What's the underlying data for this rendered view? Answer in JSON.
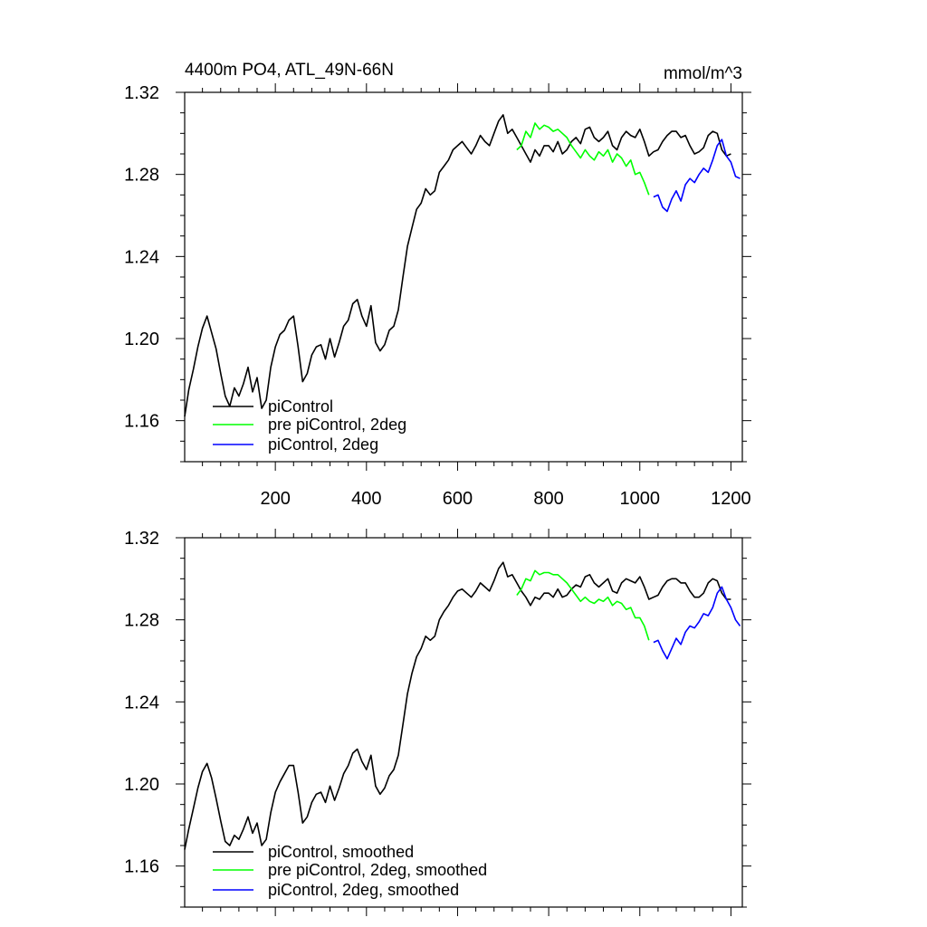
{
  "header": {
    "title": "4400m PO4, ATL_49N-66N",
    "units": "mmol/m^3"
  },
  "colors": {
    "piControl": "#000000",
    "pre_piControl_2deg": "#00ff00",
    "piControl_2deg": "#0000ff"
  },
  "chart_data": [
    {
      "type": "line",
      "title": "4400m PO4, ATL_49N-66N",
      "units_label": "mmol/m^3",
      "xlabel": "",
      "ylabel": "",
      "xlim": [
        1,
        1225
      ],
      "ylim": [
        1.14,
        1.32
      ],
      "xticks": [
        200,
        400,
        600,
        800,
        1000,
        1200
      ],
      "xtick_labels": [
        "200",
        "400",
        "600",
        "800",
        "1000",
        "1200"
      ],
      "yticks": [
        1.16,
        1.2,
        1.24,
        1.28,
        1.32
      ],
      "ytick_labels": [
        "1.16",
        "1.20",
        "1.24",
        "1.28",
        "1.32"
      ],
      "grid": false,
      "legend_position": "bottom-left",
      "series": [
        {
          "name": "piControl",
          "color": "#000000",
          "x": [
            1,
            10,
            20,
            30,
            40,
            50,
            60,
            70,
            80,
            90,
            100,
            110,
            120,
            130,
            140,
            150,
            160,
            170,
            180,
            190,
            200,
            210,
            220,
            230,
            240,
            250,
            260,
            270,
            280,
            290,
            300,
            310,
            320,
            330,
            340,
            350,
            360,
            370,
            380,
            390,
            400,
            410,
            420,
            430,
            440,
            450,
            460,
            470,
            480,
            490,
            500,
            510,
            520,
            530,
            540,
            550,
            560,
            570,
            580,
            590,
            600,
            610,
            620,
            630,
            640,
            650,
            660,
            670,
            680,
            690,
            700,
            710,
            720,
            730,
            740,
            750,
            760,
            770,
            780,
            790,
            800,
            810,
            820,
            830,
            840,
            850,
            860,
            870,
            880,
            890,
            900,
            910,
            920,
            930,
            940,
            950,
            960,
            970,
            980,
            990,
            1000,
            1010,
            1020,
            1030,
            1040,
            1050,
            1060,
            1070,
            1080,
            1090,
            1100,
            1110,
            1120,
            1130,
            1140,
            1150,
            1160,
            1170,
            1180,
            1190,
            1200
          ],
          "y": [
            1.162,
            1.175,
            1.185,
            1.196,
            1.205,
            1.211,
            1.203,
            1.195,
            1.183,
            1.172,
            1.167,
            1.176,
            1.172,
            1.178,
            1.186,
            1.174,
            1.181,
            1.166,
            1.17,
            1.186,
            1.196,
            1.202,
            1.204,
            1.209,
            1.211,
            1.196,
            1.179,
            1.183,
            1.192,
            1.196,
            1.197,
            1.19,
            1.2,
            1.191,
            1.198,
            1.206,
            1.209,
            1.217,
            1.219,
            1.211,
            1.206,
            1.216,
            1.198,
            1.194,
            1.197,
            1.204,
            1.206,
            1.214,
            1.23,
            1.245,
            1.254,
            1.263,
            1.266,
            1.273,
            1.27,
            1.272,
            1.281,
            1.284,
            1.287,
            1.292,
            1.294,
            1.296,
            1.293,
            1.29,
            1.294,
            1.299,
            1.296,
            1.294,
            1.3,
            1.306,
            1.309,
            1.3,
            1.302,
            1.298,
            1.294,
            1.29,
            1.286,
            1.292,
            1.289,
            1.294,
            1.294,
            1.291,
            1.296,
            1.29,
            1.292,
            1.296,
            1.298,
            1.295,
            1.302,
            1.303,
            1.298,
            1.296,
            1.298,
            1.301,
            1.294,
            1.292,
            1.298,
            1.301,
            1.299,
            1.298,
            1.302,
            1.296,
            1.289,
            1.291,
            1.292,
            1.296,
            1.299,
            1.301,
            1.301,
            1.298,
            1.299,
            1.294,
            1.29,
            1.291,
            1.293,
            1.299,
            1.301,
            1.3,
            1.292,
            1.289,
            1.29
          ]
        },
        {
          "name": "pre piControl, 2deg",
          "color": "#00ff00",
          "x": [
            730,
            740,
            750,
            760,
            770,
            780,
            790,
            800,
            810,
            820,
            830,
            840,
            850,
            860,
            870,
            880,
            890,
            900,
            910,
            920,
            930,
            940,
            950,
            960,
            970,
            980,
            990,
            1000,
            1010,
            1020
          ],
          "y": [
            1.292,
            1.294,
            1.301,
            1.298,
            1.305,
            1.302,
            1.304,
            1.303,
            1.301,
            1.302,
            1.3,
            1.298,
            1.294,
            1.291,
            1.288,
            1.292,
            1.289,
            1.287,
            1.291,
            1.289,
            1.292,
            1.286,
            1.29,
            1.288,
            1.284,
            1.287,
            1.28,
            1.281,
            1.276,
            1.27
          ]
        },
        {
          "name": "piControl, 2deg",
          "color": "#0000ff",
          "x": [
            1030,
            1040,
            1050,
            1060,
            1070,
            1080,
            1090,
            1100,
            1110,
            1120,
            1130,
            1140,
            1150,
            1160,
            1170,
            1180,
            1190,
            1200,
            1210,
            1220
          ],
          "y": [
            1.269,
            1.27,
            1.264,
            1.262,
            1.268,
            1.272,
            1.267,
            1.275,
            1.278,
            1.276,
            1.28,
            1.283,
            1.281,
            1.287,
            1.294,
            1.297,
            1.289,
            1.286,
            1.279,
            1.278
          ]
        }
      ]
    },
    {
      "type": "line",
      "title": "",
      "xlabel": "",
      "ylabel": "",
      "xlim": [
        1,
        1225
      ],
      "ylim": [
        1.14,
        1.32
      ],
      "xticks": [
        200,
        400,
        600,
        800,
        1000,
        1200
      ],
      "xtick_labels": [],
      "yticks": [
        1.16,
        1.2,
        1.24,
        1.28,
        1.32
      ],
      "ytick_labels": [
        "1.16",
        "1.20",
        "1.24",
        "1.28",
        "1.32"
      ],
      "grid": false,
      "legend_position": "bottom-left",
      "series": [
        {
          "name": "piControl, smoothed",
          "color": "#000000",
          "x": [
            1,
            10,
            20,
            30,
            40,
            50,
            60,
            70,
            80,
            90,
            100,
            110,
            120,
            130,
            140,
            150,
            160,
            170,
            180,
            190,
            200,
            210,
            220,
            230,
            240,
            250,
            260,
            270,
            280,
            290,
            300,
            310,
            320,
            330,
            340,
            350,
            360,
            370,
            380,
            390,
            400,
            410,
            420,
            430,
            440,
            450,
            460,
            470,
            480,
            490,
            500,
            510,
            520,
            530,
            540,
            550,
            560,
            570,
            580,
            590,
            600,
            610,
            620,
            630,
            640,
            650,
            660,
            670,
            680,
            690,
            700,
            710,
            720,
            730,
            740,
            750,
            760,
            770,
            780,
            790,
            800,
            810,
            820,
            830,
            840,
            850,
            860,
            870,
            880,
            890,
            900,
            910,
            920,
            930,
            940,
            950,
            960,
            970,
            980,
            990,
            1000,
            1010,
            1020,
            1030,
            1040,
            1050,
            1060,
            1070,
            1080,
            1090,
            1100,
            1110,
            1120,
            1130,
            1140,
            1150,
            1160,
            1170,
            1180,
            1190,
            1200
          ],
          "y": [
            1.168,
            1.178,
            1.188,
            1.198,
            1.206,
            1.21,
            1.203,
            1.193,
            1.182,
            1.172,
            1.17,
            1.175,
            1.173,
            1.178,
            1.184,
            1.176,
            1.181,
            1.17,
            1.173,
            1.186,
            1.196,
            1.201,
            1.205,
            1.209,
            1.209,
            1.196,
            1.181,
            1.184,
            1.191,
            1.195,
            1.196,
            1.191,
            1.199,
            1.192,
            1.198,
            1.205,
            1.209,
            1.215,
            1.217,
            1.211,
            1.207,
            1.214,
            1.199,
            1.195,
            1.198,
            1.204,
            1.207,
            1.214,
            1.229,
            1.244,
            1.254,
            1.262,
            1.266,
            1.272,
            1.27,
            1.272,
            1.28,
            1.284,
            1.287,
            1.291,
            1.294,
            1.295,
            1.293,
            1.291,
            1.294,
            1.298,
            1.296,
            1.294,
            1.299,
            1.305,
            1.308,
            1.301,
            1.302,
            1.298,
            1.294,
            1.291,
            1.287,
            1.291,
            1.29,
            1.293,
            1.293,
            1.291,
            1.295,
            1.291,
            1.292,
            1.295,
            1.297,
            1.296,
            1.301,
            1.302,
            1.298,
            1.296,
            1.298,
            1.3,
            1.294,
            1.293,
            1.298,
            1.3,
            1.299,
            1.298,
            1.301,
            1.296,
            1.29,
            1.291,
            1.292,
            1.296,
            1.299,
            1.3,
            1.3,
            1.298,
            1.298,
            1.294,
            1.291,
            1.291,
            1.293,
            1.298,
            1.3,
            1.299,
            1.293,
            1.29,
            1.29
          ]
        },
        {
          "name": "pre piControl, 2deg, smoothed",
          "color": "#00ff00",
          "x": [
            730,
            740,
            750,
            760,
            770,
            780,
            790,
            800,
            810,
            820,
            830,
            840,
            850,
            860,
            870,
            880,
            890,
            900,
            910,
            920,
            930,
            940,
            950,
            960,
            970,
            980,
            990,
            1000,
            1010,
            1020
          ],
          "y": [
            1.292,
            1.295,
            1.3,
            1.299,
            1.304,
            1.302,
            1.303,
            1.303,
            1.302,
            1.302,
            1.3,
            1.298,
            1.295,
            1.292,
            1.289,
            1.291,
            1.289,
            1.288,
            1.29,
            1.289,
            1.291,
            1.287,
            1.289,
            1.288,
            1.285,
            1.286,
            1.281,
            1.281,
            1.277,
            1.27
          ]
        },
        {
          "name": "piControl, 2deg, smoothed",
          "color": "#0000ff",
          "x": [
            1030,
            1040,
            1050,
            1060,
            1070,
            1080,
            1090,
            1100,
            1110,
            1120,
            1130,
            1140,
            1150,
            1160,
            1170,
            1180,
            1190,
            1200,
            1210,
            1220
          ],
          "y": [
            1.269,
            1.27,
            1.265,
            1.261,
            1.266,
            1.271,
            1.268,
            1.274,
            1.277,
            1.276,
            1.279,
            1.283,
            1.282,
            1.286,
            1.293,
            1.296,
            1.29,
            1.286,
            1.28,
            1.277
          ]
        }
      ]
    }
  ]
}
